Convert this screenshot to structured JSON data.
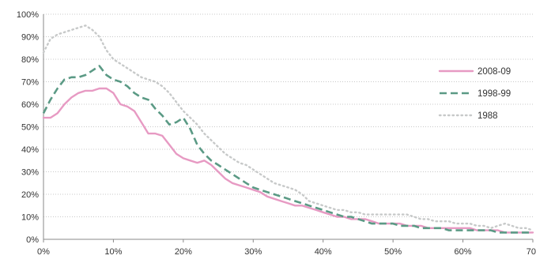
{
  "chart_data": {
    "type": "line",
    "title": "",
    "xlabel": "",
    "ylabel": "",
    "xlim": [
      0,
      70
    ],
    "ylim": [
      0,
      100
    ],
    "x_ticks": [
      0,
      10,
      20,
      30,
      40,
      50,
      60,
      70
    ],
    "y_ticks": [
      0,
      10,
      20,
      30,
      40,
      50,
      60,
      70,
      80,
      90,
      100
    ],
    "x_tick_labels": [
      "0%",
      "10%",
      "20%",
      "30%",
      "40%",
      "50%",
      "60%",
      "70"
    ],
    "y_tick_labels": [
      "0%",
      "10%",
      "20%",
      "30%",
      "40%",
      "50%",
      "60%",
      "70%",
      "80%",
      "90%",
      "100%"
    ],
    "grid": "horizontal-dotted",
    "legend_position": "right",
    "series": [
      {
        "name": "2008-09",
        "color": "#e79ac3",
        "style": "solid",
        "x": [
          0,
          1,
          2,
          3,
          4,
          5,
          6,
          7,
          8,
          9,
          10,
          11,
          12,
          13,
          14,
          15,
          16,
          17,
          18,
          19,
          20,
          21,
          22,
          23,
          24,
          25,
          26,
          27,
          28,
          29,
          30,
          31,
          32,
          33,
          34,
          35,
          36,
          37,
          38,
          39,
          40,
          41,
          42,
          43,
          44,
          45,
          46,
          47,
          48,
          49,
          50,
          51,
          52,
          53,
          54,
          55,
          56,
          57,
          58,
          59,
          60,
          61,
          62,
          63,
          64,
          65,
          66,
          67,
          68,
          69,
          70
        ],
        "y": [
          54,
          54,
          56,
          60,
          63,
          65,
          66,
          66,
          67,
          67,
          65,
          60,
          59,
          57,
          52,
          47,
          47,
          46,
          42,
          38,
          36,
          35,
          34,
          35,
          33,
          30,
          27,
          25,
          24,
          23,
          22,
          21,
          19,
          18,
          17,
          16,
          15,
          15,
          14,
          13,
          12,
          11,
          10,
          10,
          9,
          9,
          9,
          8,
          7,
          7,
          7,
          7,
          6,
          6,
          6,
          5,
          5,
          5,
          5,
          5,
          5,
          5,
          4,
          4,
          4,
          4,
          3,
          3,
          3,
          3,
          3
        ]
      },
      {
        "name": "1998-99",
        "color": "#5b9a85",
        "style": "dashed",
        "x": [
          0,
          1,
          2,
          3,
          4,
          5,
          6,
          7,
          8,
          9,
          10,
          11,
          12,
          13,
          14,
          15,
          16,
          17,
          18,
          19,
          20,
          21,
          22,
          23,
          24,
          25,
          26,
          27,
          28,
          29,
          30,
          31,
          32,
          33,
          34,
          35,
          36,
          37,
          38,
          39,
          40,
          41,
          42,
          43,
          44,
          45,
          46,
          47,
          48,
          49,
          50,
          51,
          52,
          53,
          54,
          55,
          56,
          57,
          58,
          59,
          60,
          61,
          62,
          63,
          64,
          65,
          66,
          67,
          68,
          69,
          70
        ],
        "y": [
          56,
          62,
          67,
          71,
          72,
          72,
          73,
          75,
          77,
          73,
          71,
          70,
          68,
          65,
          63,
          62,
          58,
          55,
          51,
          52,
          54,
          49,
          42,
          38,
          35,
          33,
          31,
          29,
          27,
          25,
          23,
          22,
          21,
          20,
          19,
          18,
          17,
          16,
          15,
          14,
          13,
          12,
          11,
          10,
          10,
          9,
          8,
          7,
          7,
          7,
          7,
          6,
          6,
          6,
          5,
          5,
          5,
          5,
          4,
          4,
          4,
          4,
          4,
          4,
          4,
          3,
          3,
          3,
          3,
          3,
          3
        ]
      },
      {
        "name": "1988",
        "color": "#c7c9c9",
        "style": "dotted",
        "x": [
          0,
          1,
          2,
          3,
          4,
          5,
          6,
          7,
          8,
          9,
          10,
          11,
          12,
          13,
          14,
          15,
          16,
          17,
          18,
          19,
          20,
          21,
          22,
          23,
          24,
          25,
          26,
          27,
          28,
          29,
          30,
          31,
          32,
          33,
          34,
          35,
          36,
          37,
          38,
          39,
          40,
          41,
          42,
          43,
          44,
          45,
          46,
          47,
          48,
          49,
          50,
          51,
          52,
          53,
          54,
          55,
          56,
          57,
          58,
          59,
          60,
          61,
          62,
          63,
          64,
          65,
          66,
          67,
          68,
          69,
          70
        ],
        "y": [
          83,
          89,
          91,
          92,
          93,
          94,
          95,
          93,
          90,
          84,
          80,
          78,
          76,
          74,
          72,
          71,
          70,
          68,
          65,
          61,
          57,
          54,
          51,
          47,
          44,
          41,
          38,
          36,
          34,
          33,
          31,
          29,
          27,
          25,
          24,
          23,
          22,
          20,
          17,
          16,
          15,
          14,
          13,
          13,
          12,
          12,
          11,
          11,
          11,
          11,
          11,
          11,
          11,
          10,
          9,
          9,
          8,
          8,
          8,
          7,
          7,
          7,
          6,
          6,
          5,
          6,
          7,
          6,
          5,
          5,
          4
        ]
      }
    ]
  }
}
